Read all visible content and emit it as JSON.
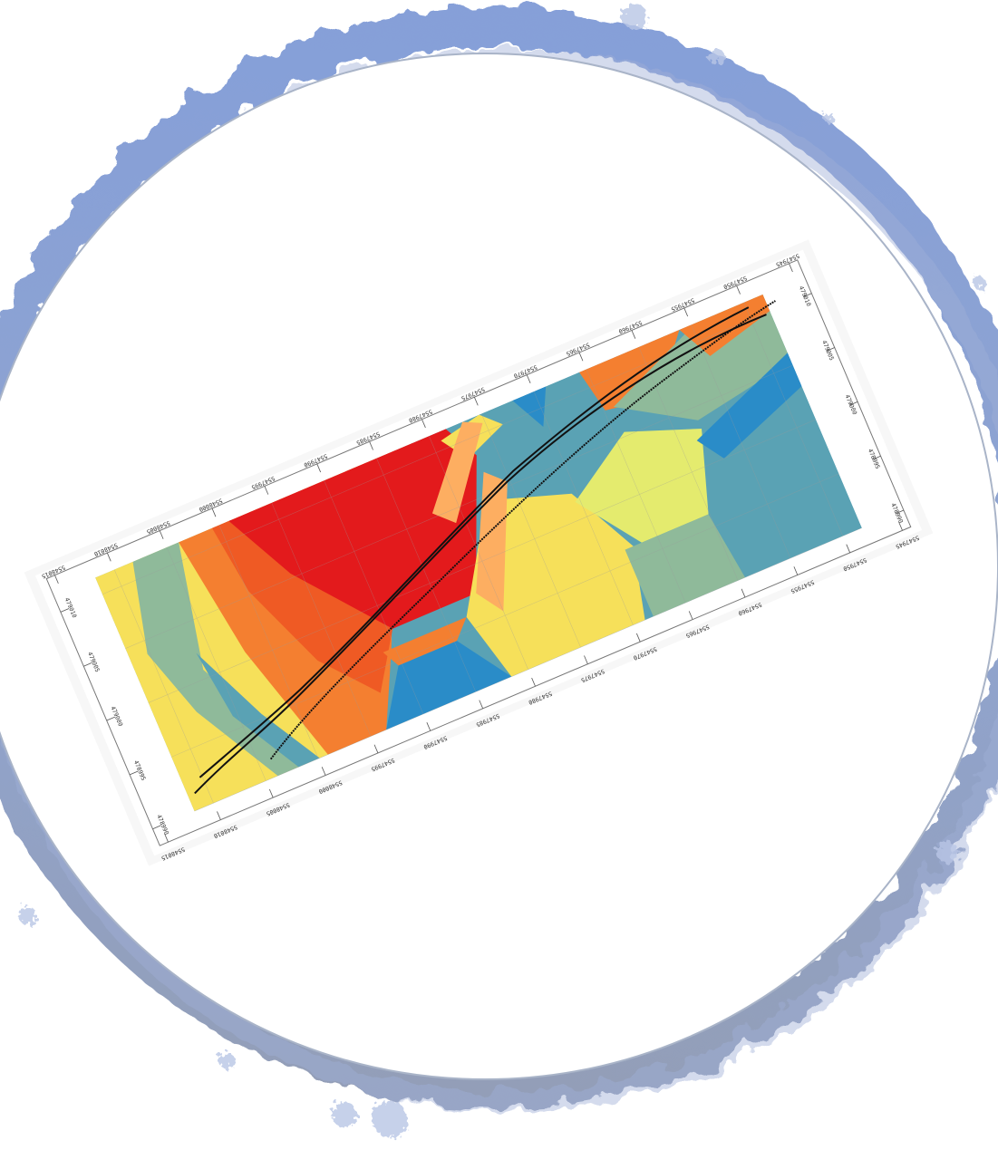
{
  "colors": {
    "ring_outer": "#7b95cf",
    "ring_inner_line": "#a9b4c8",
    "background": "#ffffff",
    "zone_red": "#e31a1c",
    "zone_dark_orange": "#ef5a24",
    "zone_orange": "#f47f30",
    "zone_light_orange": "#fdae61",
    "zone_yellow": "#f6e05a",
    "zone_pale_yellow": "#e4eb6e",
    "zone_sage": "#8fba9a",
    "zone_teal": "#5aa2b4",
    "zone_blue": "#2a8cc8",
    "track_line": "#111111"
  },
  "map": {
    "top_axis_labels": [
      "5548015",
      "5548010",
      "5548005",
      "5548000",
      "5547995",
      "5547990",
      "5547985",
      "5547980",
      "5547975",
      "5547970",
      "5547965",
      "5547960",
      "5547955",
      "5547950",
      "5547945"
    ],
    "bottom_axis_labels": [
      "5548015",
      "5548010",
      "5548005",
      "5548000",
      "5547995",
      "5547990",
      "5547985",
      "5547980",
      "5547975",
      "5547970",
      "5547965",
      "5547960",
      "5547955",
      "5547950",
      "5547945"
    ],
    "left_axis_labels": [
      "479010",
      "479005",
      "479000",
      "478995",
      "478990"
    ],
    "right_axis_labels": [
      "479010",
      "479005",
      "479000",
      "478995",
      "478990"
    ]
  }
}
